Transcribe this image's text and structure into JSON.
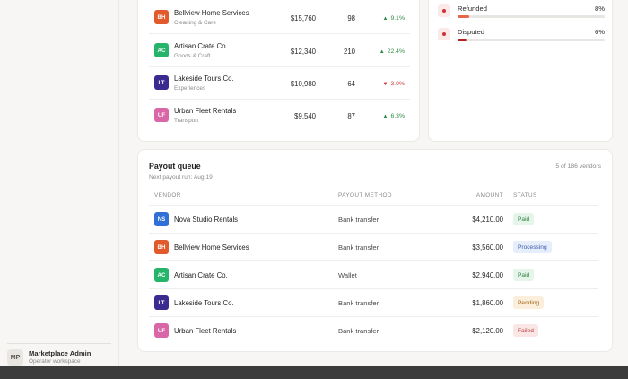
{
  "colors": {
    "ns": "#2f6fd6",
    "bh": "#e2592b",
    "ac": "#26b46a",
    "lt": "#3b2a8f",
    "uf": "#d966a6"
  },
  "top_vendors": [
    {
      "initials": "BH",
      "name": "Bellview Home Services",
      "category": "Cleaning & Care",
      "revenue": "$15,760",
      "orders": "98",
      "change": "9.1%",
      "direction": "up",
      "color_key": "bh"
    },
    {
      "initials": "AC",
      "name": "Artisan Crate Co.",
      "category": "Goods & Craft",
      "revenue": "$12,340",
      "orders": "210",
      "change": "22.4%",
      "direction": "up",
      "color_key": "ac"
    },
    {
      "initials": "LT",
      "name": "Lakeside Tours Co.",
      "category": "Experiences",
      "revenue": "$10,980",
      "orders": "64",
      "change": "3.0%",
      "direction": "down",
      "color_key": "lt"
    },
    {
      "initials": "UF",
      "name": "Urban Fleet Rentals",
      "category": "Transport",
      "revenue": "$9,540",
      "orders": "87",
      "change": "6.3%",
      "direction": "up",
      "color_key": "uf"
    }
  ],
  "status": [
    {
      "label": "Refunded",
      "percent": "8%",
      "fill_pct": 8,
      "fill_color": "#e8664a"
    },
    {
      "label": "Disputed",
      "percent": "6%",
      "fill_pct": 6,
      "fill_color": "#b52020"
    }
  ],
  "payout": {
    "title": "Payout queue",
    "subtitle": "Next payout run: Aug 19",
    "count": "5 of 186 vendors",
    "headers": {
      "vendor": "VENDOR",
      "method": "PAYOUT METHOD",
      "amount": "AMOUNT",
      "status": "STATUS"
    },
    "rows": [
      {
        "initials": "NS",
        "name": "Nova Studio Rentals",
        "method": "Bank transfer",
        "amount": "$4,210.00",
        "status": "Paid",
        "status_kind": "paid",
        "color_key": "ns"
      },
      {
        "initials": "BH",
        "name": "Bellview Home Services",
        "method": "Bank transfer",
        "amount": "$3,560.00",
        "status": "Processing",
        "status_kind": "processing",
        "color_key": "bh"
      },
      {
        "initials": "AC",
        "name": "Artisan Crate Co.",
        "method": "Wallet",
        "amount": "$2,940.00",
        "status": "Paid",
        "status_kind": "paid",
        "color_key": "ac"
      },
      {
        "initials": "LT",
        "name": "Lakeside Tours Co.",
        "method": "Bank transfer",
        "amount": "$1,860.00",
        "status": "Pending",
        "status_kind": "pending",
        "color_key": "lt"
      },
      {
        "initials": "UF",
        "name": "Urban Fleet Rentals",
        "method": "Bank transfer",
        "amount": "$2,120.00",
        "status": "Failed",
        "status_kind": "failed",
        "color_key": "uf"
      }
    ]
  },
  "sidebar": {
    "user": {
      "initials": "MP",
      "name": "Marketplace Admin",
      "subtitle": "Operator workspace"
    }
  }
}
